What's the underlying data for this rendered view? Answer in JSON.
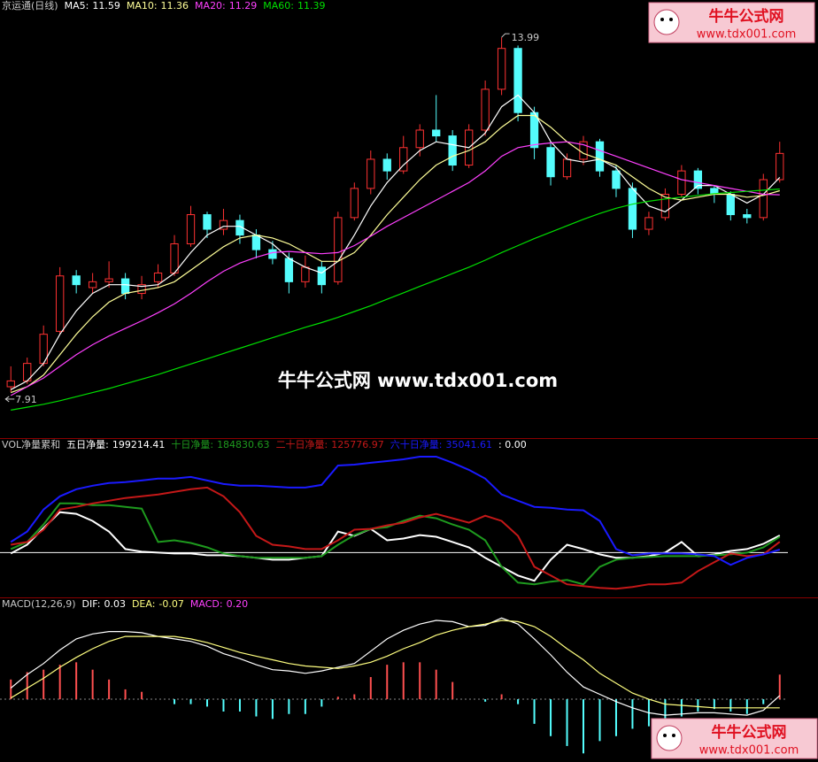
{
  "watermark": {
    "text": "牛牛公式网 www.tdx001.com",
    "logo_title": "牛牛公式网",
    "logo_url": "www.tdx001.com"
  },
  "chart_data": [
    {
      "type": "candlestick",
      "title": "京运通(日线)",
      "open": [
        8.0,
        8.1,
        8.4,
        8.95,
        9.9,
        9.7,
        9.8,
        9.85,
        9.6,
        9.8,
        9.95,
        10.45,
        10.95,
        10.7,
        10.85,
        10.6,
        10.35,
        10.2,
        9.8,
        10.05,
        9.8,
        10.9,
        11.4,
        11.9,
        11.7,
        12.1,
        12.4,
        12.3,
        11.8,
        12.4,
        13.1,
        13.8,
        12.7,
        12.1,
        11.6,
        11.9,
        12.2,
        11.7,
        11.4,
        10.7,
        10.9,
        11.3,
        11.7,
        11.4,
        11.3,
        10.95,
        10.9,
        11.55
      ],
      "high": [
        8.35,
        8.5,
        9.05,
        10.05,
        10.0,
        9.95,
        10.15,
        9.95,
        9.9,
        10.1,
        10.6,
        11.1,
        11.0,
        11.05,
        10.95,
        10.7,
        10.5,
        10.3,
        10.25,
        10.15,
        11.0,
        11.5,
        12.05,
        12.0,
        12.3,
        12.5,
        13.0,
        12.4,
        12.5,
        13.25,
        13.99,
        13.85,
        12.8,
        12.2,
        12.0,
        12.3,
        12.25,
        11.8,
        11.5,
        11.0,
        11.4,
        11.8,
        11.75,
        11.45,
        11.35,
        11.05,
        11.65,
        12.2
      ],
      "low": [
        7.91,
        8.05,
        8.35,
        8.9,
        9.6,
        9.6,
        9.7,
        9.5,
        9.5,
        9.7,
        9.9,
        10.4,
        10.55,
        10.6,
        10.45,
        10.2,
        10.1,
        9.6,
        9.7,
        9.6,
        9.75,
        10.85,
        11.3,
        11.55,
        11.65,
        11.95,
        12.2,
        11.7,
        11.75,
        12.3,
        13.0,
        12.55,
        11.9,
        11.45,
        11.55,
        11.8,
        11.6,
        11.25,
        10.55,
        10.6,
        10.85,
        11.25,
        11.3,
        11.15,
        10.85,
        10.8,
        10.85,
        11.5
      ],
      "close": [
        8.1,
        8.4,
        8.9,
        9.9,
        9.75,
        9.8,
        9.85,
        9.6,
        9.75,
        9.95,
        10.45,
        10.95,
        10.7,
        10.85,
        10.6,
        10.35,
        10.2,
        9.8,
        10.05,
        9.75,
        10.9,
        11.4,
        11.9,
        11.7,
        12.1,
        12.4,
        12.3,
        11.8,
        12.4,
        13.1,
        13.8,
        12.7,
        12.1,
        11.6,
        11.9,
        12.2,
        11.7,
        11.4,
        10.7,
        10.9,
        11.3,
        11.7,
        11.4,
        11.3,
        10.95,
        10.9,
        11.55,
        12.0
      ],
      "up_color": "#ff3232",
      "down_color": "#54fcfc",
      "ylim": [
        7.12,
        14.63
      ],
      "series": [
        {
          "name": "MA5:",
          "color": "#ffffff",
          "values": [
            7.95,
            8.1,
            8.4,
            8.9,
            9.3,
            9.6,
            9.75,
            9.75,
            9.72,
            9.75,
            9.95,
            10.3,
            10.6,
            10.75,
            10.75,
            10.6,
            10.45,
            10.2,
            10.05,
            9.95,
            10.15,
            10.6,
            11.1,
            11.5,
            11.8,
            12.05,
            12.2,
            12.15,
            12.1,
            12.35,
            12.8,
            13.0,
            12.7,
            12.2,
            11.9,
            11.85,
            11.9,
            11.75,
            11.4,
            11.1,
            11.0,
            11.2,
            11.45,
            11.45,
            11.3,
            11.15,
            11.3,
            11.59
          ]
        },
        {
          "name": "MA10:",
          "color": "#ffff99",
          "values": [
            7.9,
            8.0,
            8.2,
            8.55,
            8.9,
            9.2,
            9.45,
            9.6,
            9.65,
            9.7,
            9.8,
            10.0,
            10.2,
            10.4,
            10.55,
            10.6,
            10.55,
            10.45,
            10.3,
            10.15,
            10.15,
            10.3,
            10.6,
            10.95,
            11.25,
            11.55,
            11.8,
            11.95,
            12.05,
            12.2,
            12.45,
            12.65,
            12.65,
            12.45,
            12.2,
            12.0,
            11.9,
            11.8,
            11.6,
            11.4,
            11.25,
            11.2,
            11.25,
            11.3,
            11.3,
            11.25,
            11.28,
            11.36
          ]
        },
        {
          "name": "MA20:",
          "color": "#ff40ff",
          "values": [
            7.85,
            8.0,
            8.15,
            8.35,
            8.55,
            8.72,
            8.87,
            9.0,
            9.13,
            9.27,
            9.42,
            9.6,
            9.8,
            9.98,
            10.12,
            10.22,
            10.3,
            10.32,
            10.3,
            10.28,
            10.3,
            10.42,
            10.58,
            10.75,
            10.9,
            11.05,
            11.2,
            11.35,
            11.5,
            11.7,
            11.95,
            12.1,
            12.15,
            12.18,
            12.2,
            12.15,
            12.05,
            11.95,
            11.85,
            11.75,
            11.65,
            11.55,
            11.5,
            11.45,
            11.4,
            11.35,
            11.3,
            11.29
          ]
        },
        {
          "name": "MA60:",
          "color": "#00e000",
          "values": [
            7.6,
            7.65,
            7.7,
            7.76,
            7.83,
            7.9,
            7.97,
            8.05,
            8.13,
            8.21,
            8.3,
            8.39,
            8.48,
            8.57,
            8.66,
            8.75,
            8.84,
            8.93,
            9.02,
            9.1,
            9.19,
            9.29,
            9.39,
            9.5,
            9.61,
            9.72,
            9.83,
            9.94,
            10.05,
            10.17,
            10.3,
            10.42,
            10.54,
            10.65,
            10.76,
            10.87,
            10.97,
            11.06,
            11.13,
            11.18,
            11.22,
            11.25,
            11.28,
            11.31,
            11.33,
            11.35,
            11.37,
            11.39
          ]
        }
      ]
    },
    {
      "type": "line",
      "title": "VOL净量累和",
      "ylim": [
        -520000,
        1320000
      ],
      "baseline": {
        "value": 0,
        "label": ": 0.00"
      },
      "series": [
        {
          "name": "五日净量:",
          "color": "#ffffff",
          "values": [
            -10000,
            92000,
            286000,
            470000,
            450000,
            368000,
            245000,
            41000,
            10000,
            0,
            -10000,
            -10000,
            -31000,
            -31000,
            -41000,
            -61000,
            -82000,
            -82000,
            -61000,
            -41000,
            245000,
            194000,
            276000,
            143000,
            164000,
            204000,
            184000,
            123000,
            61000,
            -61000,
            -164000,
            -266000,
            -327000,
            -82000,
            92000,
            41000,
            -20000,
            -61000,
            -61000,
            -41000,
            0,
            123000,
            -41000,
            -20000,
            20000,
            41000,
            102000,
            199214.41
          ]
        },
        {
          "name": "十日净量:",
          "color": "#1e9a1e",
          "values": [
            41000,
            123000,
            327000,
            572000,
            572000,
            552000,
            552000,
            532000,
            511000,
            123000,
            143000,
            112000,
            61000,
            -10000,
            -41000,
            -61000,
            -61000,
            -61000,
            -61000,
            -41000,
            92000,
            204000,
            276000,
            296000,
            368000,
            429000,
            399000,
            327000,
            266000,
            143000,
            -164000,
            -348000,
            -368000,
            -337000,
            -317000,
            -368000,
            -164000,
            -82000,
            -61000,
            -51000,
            -41000,
            -41000,
            -41000,
            -31000,
            -20000,
            0,
            61000,
            184830.63
          ]
        },
        {
          "name": "二十日净量:",
          "color": "#c41818",
          "values": [
            92000,
            123000,
            266000,
            501000,
            532000,
            572000,
            603000,
            634000,
            654000,
            675000,
            705000,
            736000,
            756000,
            654000,
            470000,
            194000,
            92000,
            72000,
            41000,
            41000,
            143000,
            266000,
            276000,
            317000,
            348000,
            409000,
            450000,
            399000,
            348000,
            429000,
            368000,
            194000,
            -164000,
            -266000,
            -368000,
            -388000,
            -409000,
            -419000,
            -399000,
            -368000,
            -368000,
            -348000,
            -215000,
            -112000,
            -10000,
            -41000,
            -20000,
            125776.97
          ]
        },
        {
          "name": "六十日净量:",
          "color": "#1a1aff",
          "values": [
            123000,
            245000,
            501000,
            654000,
            736000,
            777000,
            808000,
            818000,
            838000,
            859000,
            859000,
            879000,
            838000,
            797000,
            777000,
            777000,
            767000,
            756000,
            756000,
            787000,
            1012000,
            1022000,
            1043000,
            1063000,
            1084000,
            1114000,
            1114000,
            1043000,
            961000,
            859000,
            675000,
            603000,
            532000,
            521000,
            501000,
            491000,
            368000,
            41000,
            -31000,
            -10000,
            -10000,
            -10000,
            -20000,
            -41000,
            -143000,
            -61000,
            -20000,
            35041.61
          ]
        }
      ]
    },
    {
      "type": "macd",
      "title": "MACD(12,26,9)",
      "ylim": [
        -0.51,
        0.82
      ],
      "up_color": "#ff5050",
      "down_color": "#54ffff",
      "series": [
        {
          "name": "DIF:",
          "color": "#ffffff",
          "values": [
            0.09,
            0.2,
            0.29,
            0.4,
            0.49,
            0.53,
            0.55,
            0.55,
            0.54,
            0.51,
            0.49,
            0.47,
            0.43,
            0.37,
            0.33,
            0.28,
            0.24,
            0.23,
            0.21,
            0.23,
            0.26,
            0.29,
            0.39,
            0.49,
            0.56,
            0.61,
            0.64,
            0.63,
            0.59,
            0.6,
            0.66,
            0.61,
            0.49,
            0.36,
            0.22,
            0.1,
            0.04,
            -0.02,
            -0.07,
            -0.11,
            -0.13,
            -0.12,
            -0.11,
            -0.11,
            -0.12,
            -0.13,
            -0.09,
            0.03
          ]
        },
        {
          "name": "DEA:",
          "color": "#ffff80",
          "values": [
            0.01,
            0.09,
            0.17,
            0.26,
            0.34,
            0.41,
            0.47,
            0.51,
            0.51,
            0.51,
            0.51,
            0.49,
            0.46,
            0.42,
            0.38,
            0.35,
            0.32,
            0.29,
            0.27,
            0.26,
            0.25,
            0.27,
            0.3,
            0.35,
            0.41,
            0.46,
            0.52,
            0.56,
            0.59,
            0.61,
            0.64,
            0.63,
            0.59,
            0.51,
            0.41,
            0.32,
            0.21,
            0.13,
            0.05,
            0.0,
            -0.04,
            -0.05,
            -0.06,
            -0.07,
            -0.07,
            -0.07,
            -0.07,
            -0.07
          ]
        },
        {
          "name": "MACD:",
          "color": "#ff40ff",
          "type": "bar",
          "value_label": "0.20",
          "values": [
            0.16,
            0.22,
            0.24,
            0.28,
            0.3,
            0.24,
            0.16,
            0.08,
            0.06,
            0.0,
            -0.04,
            -0.04,
            -0.06,
            -0.1,
            -0.1,
            -0.14,
            -0.16,
            -0.12,
            -0.12,
            -0.06,
            0.02,
            0.04,
            0.18,
            0.28,
            0.3,
            0.3,
            0.24,
            0.14,
            0.0,
            -0.02,
            0.04,
            -0.04,
            -0.2,
            -0.3,
            -0.38,
            -0.44,
            -0.34,
            -0.3,
            -0.24,
            -0.22,
            -0.18,
            -0.14,
            -0.1,
            -0.08,
            -0.1,
            -0.12,
            -0.04,
            0.2
          ]
        }
      ]
    }
  ]
}
